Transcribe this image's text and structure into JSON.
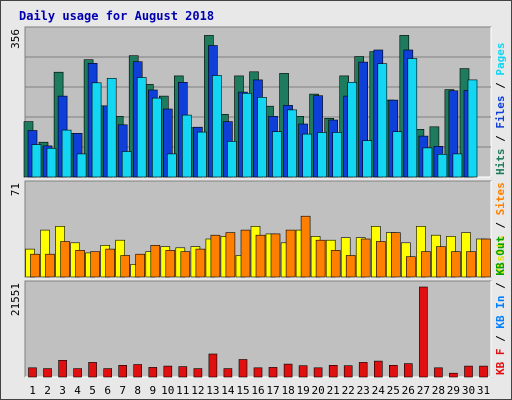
{
  "chart_data": {
    "type": "bar",
    "title": "Daily usage for August 2018",
    "colors": {
      "background": "#E8E8E8",
      "panel": "#C0C0C0",
      "hits": "#1F7B5E",
      "files": "#0E3FD9",
      "pages": "#13D6F2",
      "visits": "#FFFF00",
      "sites": "#FF8000",
      "kb_in": "#0080FF",
      "kb_out": "#00A000",
      "kb_f": "#E01010",
      "weekend_label": "#2E8B57",
      "title": "#0000B0"
    },
    "x": [
      "1",
      "2",
      "3",
      "4",
      "5",
      "6",
      "7",
      "8",
      "9",
      "10",
      "11",
      "12",
      "13",
      "14",
      "15",
      "16",
      "17",
      "18",
      "19",
      "20",
      "21",
      "22",
      "23",
      "24",
      "25",
      "26",
      "27",
      "28",
      "29",
      "30",
      "31"
    ],
    "weekend_days": [
      "4",
      "5",
      "11",
      "12",
      "18",
      "19",
      "25",
      "26"
    ],
    "panels": [
      {
        "id": "hits-files-pages",
        "scale_label": "356",
        "ymax": 356,
        "axis_label": [
          {
            "text": "Hits",
            "color": "#1F7B5E"
          },
          {
            "text": "Files",
            "color": "#0E3FD9"
          },
          {
            "text": "Pages",
            "color": "#13D6F2"
          }
        ],
        "series": [
          {
            "name": "Hits",
            "color": "#1F7B5E",
            "values": [
              137,
              86,
              259,
              108,
              290,
              176,
              150,
              300,
              229,
              200,
              250,
              122,
              350,
              155,
              250,
              260,
              175,
              256,
              150,
              205,
              145,
              250,
              298,
              310,
              190,
              350,
              118,
              124,
              216,
              268,
              0
            ]
          },
          {
            "name": "Files",
            "color": "#0E3FD9",
            "values": [
              115,
              77,
              200,
              108,
              281,
              176,
              129,
              285,
              215,
              168,
              234,
              123,
              325,
              137,
              210,
              240,
              150,
              177,
              131,
              201,
              141,
              200,
              284,
              314,
              190,
              314,
              101,
              76,
              213,
              214,
              0
            ]
          },
          {
            "name": "Pages",
            "color": "#13D6F2",
            "values": [
              80,
              71,
              116,
              57,
              233,
              244,
              63,
              246,
              195,
              57,
              153,
              111,
              251,
              88,
              207,
              197,
              112,
              166,
              106,
              110,
              110,
              234,
              90,
              280,
              112,
              293,
              72,
              56,
              57,
              240,
              0
            ]
          }
        ]
      },
      {
        "id": "visits-sites",
        "scale_label": "71",
        "ymax": 71,
        "axis_label": [
          {
            "text": "Visits",
            "color": "#E0E000"
          },
          {
            "text": "Sites",
            "color": "#FF8000"
          }
        ],
        "series": [
          {
            "name": "Visits",
            "color": "#FFFF00",
            "values": [
              22,
              37,
              40,
              27,
              19,
              25,
              29,
              10,
              20,
              24,
              23,
              24,
              30,
              32,
              17,
              40,
              34,
              27,
              37,
              32,
              29,
              31,
              31,
              40,
              35,
              27,
              40,
              33,
              32,
              35,
              30
            ]
          },
          {
            "name": "Sites",
            "color": "#FF8000",
            "values": [
              18,
              18,
              28,
              21,
              20,
              22,
              17,
              18,
              25,
              21,
              20,
              22,
              33,
              35,
              37,
              33,
              34,
              37,
              48,
              29,
              21,
              17,
              30,
              28,
              35,
              16,
              20,
              24,
              20,
              20,
              30
            ]
          }
        ]
      },
      {
        "id": "kbytes",
        "scale_label": "21551",
        "ymax": 21551,
        "axis_label": [
          {
            "text": "KB F",
            "color": "#E01010"
          },
          {
            "text": "KB In",
            "color": "#0080FF"
          },
          {
            "text": "KB Out",
            "color": "#00A000"
          }
        ],
        "series": [
          {
            "name": "KB F",
            "color": "#E01010",
            "values": [
              2200,
              2000,
              4000,
              2000,
              3500,
              2000,
              2800,
              3000,
              2300,
              2600,
              2500,
              2000,
              5500,
              2000,
              4200,
              2200,
              2300,
              3100,
              2700,
              2200,
              2800,
              2700,
              3500,
              3800,
              2800,
              3200,
              21551,
              2200,
              900,
              2600,
              2600
            ]
          }
        ]
      }
    ]
  }
}
